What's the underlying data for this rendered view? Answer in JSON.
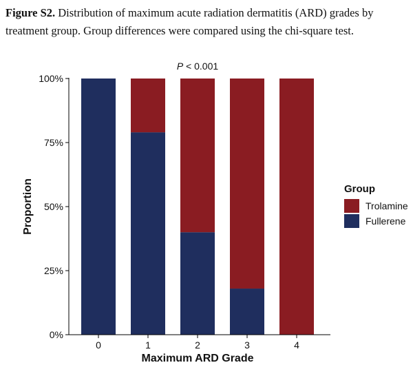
{
  "figure": {
    "label": "Figure S2.",
    "caption": "Distribution of maximum acute radiation dermatitis (ARD) grades by treatment group. Group differences were compared using the chi-square test."
  },
  "chart_data": {
    "type": "bar",
    "stacked": true,
    "categories": [
      "0",
      "1",
      "2",
      "3",
      "4"
    ],
    "series": [
      {
        "name": "Fullerene",
        "color": "#1f2e5e",
        "values": [
          1.0,
          0.79,
          0.4,
          0.18,
          0.0
        ]
      },
      {
        "name": "Trolamine",
        "color": "#8a1c22",
        "values": [
          0.0,
          0.21,
          0.6,
          0.82,
          1.0
        ]
      }
    ],
    "xlabel": "Maximum ARD Grade",
    "ylabel": "Proportion",
    "ylim": [
      0,
      1
    ],
    "yticks": [
      0,
      0.25,
      0.5,
      0.75,
      1.0
    ],
    "ytick_labels": [
      "0%",
      "25%",
      "50%",
      "75%",
      "100%"
    ],
    "annotation": {
      "italic": "P",
      "text": " < 0.001"
    },
    "legend": {
      "title": "Group",
      "position": "right",
      "entries": [
        "Trolamine",
        "Fullerene"
      ]
    },
    "grid": false
  }
}
